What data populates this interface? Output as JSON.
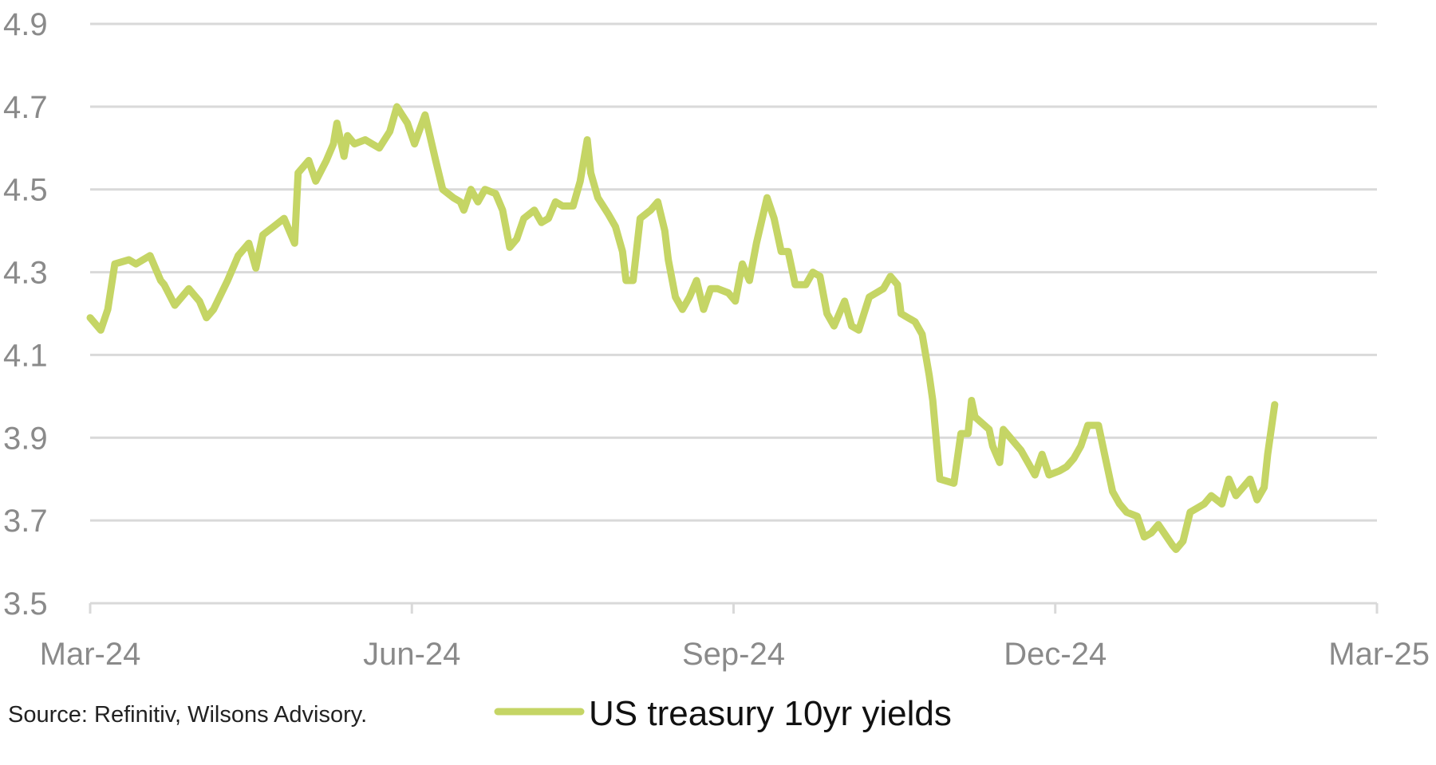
{
  "chart_data": {
    "type": "line",
    "title": "",
    "xlabel": "",
    "ylabel": "",
    "x_ticks": [
      "Mar-24",
      "Jun-24",
      "Sep-24",
      "Dec-24",
      "Mar-25"
    ],
    "y_ticks": [
      3.5,
      3.7,
      3.9,
      4.1,
      4.3,
      4.5,
      4.7,
      4.9
    ],
    "ylim": [
      3.5,
      4.9
    ],
    "xlim": [
      "2024-03-01",
      "2025-03-01"
    ],
    "grid": "horizontal",
    "legend_position": "bottom",
    "series": [
      {
        "name": "US treasury 10yr yields",
        "color": "#c5d565",
        "points": [
          [
            "2024-03-01",
            4.19
          ],
          [
            "2024-03-04",
            4.16
          ],
          [
            "2024-03-06",
            4.21
          ],
          [
            "2024-03-08",
            4.32
          ],
          [
            "2024-03-12",
            4.33
          ],
          [
            "2024-03-14",
            4.32
          ],
          [
            "2024-03-18",
            4.34
          ],
          [
            "2024-03-21",
            4.28
          ],
          [
            "2024-03-22",
            4.27
          ],
          [
            "2024-03-25",
            4.22
          ],
          [
            "2024-03-29",
            4.26
          ],
          [
            "2024-04-01",
            4.23
          ],
          [
            "2024-04-03",
            4.19
          ],
          [
            "2024-04-05",
            4.21
          ],
          [
            "2024-04-09",
            4.28
          ],
          [
            "2024-04-12",
            4.34
          ],
          [
            "2024-04-15",
            4.37
          ],
          [
            "2024-04-17",
            4.31
          ],
          [
            "2024-04-19",
            4.39
          ],
          [
            "2024-04-22",
            4.41
          ],
          [
            "2024-04-25",
            4.43
          ],
          [
            "2024-04-26",
            4.41
          ],
          [
            "2024-04-28",
            4.37
          ],
          [
            "2024-04-29",
            4.54
          ],
          [
            "2024-05-02",
            4.57
          ],
          [
            "2024-05-04",
            4.52
          ],
          [
            "2024-05-07",
            4.57
          ],
          [
            "2024-05-09",
            4.61
          ],
          [
            "2024-05-10",
            4.66
          ],
          [
            "2024-05-12",
            4.58
          ],
          [
            "2024-05-13",
            4.63
          ],
          [
            "2024-05-15",
            4.61
          ],
          [
            "2024-05-18",
            4.62
          ],
          [
            "2024-05-20",
            4.61
          ],
          [
            "2024-05-22",
            4.6
          ],
          [
            "2024-05-25",
            4.64
          ],
          [
            "2024-05-27",
            4.7
          ],
          [
            "2024-05-30",
            4.66
          ],
          [
            "2024-06-01",
            4.61
          ],
          [
            "2024-06-04",
            4.68
          ],
          [
            "2024-06-07",
            4.57
          ],
          [
            "2024-06-09",
            4.5
          ],
          [
            "2024-06-12",
            4.48
          ],
          [
            "2024-06-14",
            4.47
          ],
          [
            "2024-06-15",
            4.45
          ],
          [
            "2024-06-17",
            4.5
          ],
          [
            "2024-06-19",
            4.47
          ],
          [
            "2024-06-21",
            4.5
          ],
          [
            "2024-06-24",
            4.49
          ],
          [
            "2024-06-26",
            4.45
          ],
          [
            "2024-06-28",
            4.36
          ],
          [
            "2024-06-30",
            4.38
          ],
          [
            "2024-07-02",
            4.43
          ],
          [
            "2024-07-05",
            4.45
          ],
          [
            "2024-07-07",
            4.42
          ],
          [
            "2024-07-09",
            4.43
          ],
          [
            "2024-07-11",
            4.47
          ],
          [
            "2024-07-13",
            4.46
          ],
          [
            "2024-07-16",
            4.46
          ],
          [
            "2024-07-18",
            4.52
          ],
          [
            "2024-07-20",
            4.62
          ],
          [
            "2024-07-21",
            4.54
          ],
          [
            "2024-07-23",
            4.48
          ],
          [
            "2024-07-26",
            4.44
          ],
          [
            "2024-07-28",
            4.41
          ],
          [
            "2024-07-30",
            4.35
          ],
          [
            "2024-07-31",
            4.28
          ],
          [
            "2024-08-02",
            4.28
          ],
          [
            "2024-08-04",
            4.43
          ],
          [
            "2024-08-07",
            4.45
          ],
          [
            "2024-08-09",
            4.47
          ],
          [
            "2024-08-11",
            4.4
          ],
          [
            "2024-08-12",
            4.33
          ],
          [
            "2024-08-14",
            4.24
          ],
          [
            "2024-08-16",
            4.21
          ],
          [
            "2024-08-18",
            4.24
          ],
          [
            "2024-08-20",
            4.28
          ],
          [
            "2024-08-22",
            4.21
          ],
          [
            "2024-08-24",
            4.26
          ],
          [
            "2024-08-26",
            4.26
          ],
          [
            "2024-08-29",
            4.25
          ],
          [
            "2024-08-31",
            4.23
          ],
          [
            "2024-09-02",
            4.32
          ],
          [
            "2024-09-04",
            4.28
          ],
          [
            "2024-09-06",
            4.37
          ],
          [
            "2024-09-09",
            4.48
          ],
          [
            "2024-09-11",
            4.43
          ],
          [
            "2024-09-13",
            4.35
          ],
          [
            "2024-09-15",
            4.35
          ],
          [
            "2024-09-17",
            4.27
          ],
          [
            "2024-09-20",
            4.27
          ],
          [
            "2024-09-22",
            4.3
          ],
          [
            "2024-09-24",
            4.29
          ],
          [
            "2024-09-26",
            4.2
          ],
          [
            "2024-09-28",
            4.17
          ],
          [
            "2024-10-01",
            4.23
          ],
          [
            "2024-10-03",
            4.17
          ],
          [
            "2024-10-05",
            4.16
          ],
          [
            "2024-10-08",
            4.24
          ],
          [
            "2024-10-10",
            4.25
          ],
          [
            "2024-10-12",
            4.26
          ],
          [
            "2024-10-14",
            4.29
          ],
          [
            "2024-10-16",
            4.27
          ],
          [
            "2024-10-17",
            4.2
          ],
          [
            "2024-10-19",
            4.19
          ],
          [
            "2024-10-21",
            4.18
          ],
          [
            "2024-10-23",
            4.15
          ],
          [
            "2024-10-25",
            4.05
          ],
          [
            "2024-10-26",
            3.99
          ],
          [
            "2024-10-28",
            3.8
          ],
          [
            "2024-11-01",
            3.79
          ],
          [
            "2024-11-03",
            3.91
          ],
          [
            "2024-11-05",
            3.91
          ],
          [
            "2024-11-06",
            3.99
          ],
          [
            "2024-11-07",
            3.95
          ],
          [
            "2024-11-11",
            3.92
          ],
          [
            "2024-11-12",
            3.88
          ],
          [
            "2024-11-14",
            3.84
          ],
          [
            "2024-11-15",
            3.92
          ],
          [
            "2024-11-17",
            3.9
          ],
          [
            "2024-11-20",
            3.87
          ],
          [
            "2024-11-22",
            3.84
          ],
          [
            "2024-11-24",
            3.81
          ],
          [
            "2024-11-26",
            3.86
          ],
          [
            "2024-11-28",
            3.81
          ],
          [
            "2024-12-01",
            3.82
          ],
          [
            "2024-12-03",
            3.83
          ],
          [
            "2024-12-05",
            3.85
          ],
          [
            "2024-12-07",
            3.88
          ],
          [
            "2024-12-09",
            3.93
          ],
          [
            "2024-12-12",
            3.93
          ],
          [
            "2024-12-14",
            3.85
          ],
          [
            "2024-12-16",
            3.77
          ],
          [
            "2024-12-18",
            3.74
          ],
          [
            "2024-12-20",
            3.72
          ],
          [
            "2024-12-23",
            3.71
          ],
          [
            "2024-12-25",
            3.66
          ],
          [
            "2024-12-27",
            3.67
          ],
          [
            "2024-12-29",
            3.69
          ],
          [
            "2025-01-02",
            3.64
          ],
          [
            "2025-01-03",
            3.63
          ],
          [
            "2025-01-05",
            3.65
          ],
          [
            "2025-01-07",
            3.72
          ],
          [
            "2025-01-09",
            3.73
          ],
          [
            "2025-01-11",
            3.74
          ],
          [
            "2025-01-13",
            3.76
          ],
          [
            "2025-01-16",
            3.74
          ],
          [
            "2025-01-18",
            3.8
          ],
          [
            "2025-01-20",
            3.76
          ],
          [
            "2025-01-22",
            3.78
          ],
          [
            "2025-01-24",
            3.8
          ],
          [
            "2025-01-26",
            3.75
          ],
          [
            "2025-01-28",
            3.78
          ],
          [
            "2025-01-29",
            3.86
          ],
          [
            "2025-01-31",
            3.98
          ]
        ]
      }
    ],
    "annotations": [
      "Source: Refinitiv, Wilsons Advisory."
    ]
  }
}
